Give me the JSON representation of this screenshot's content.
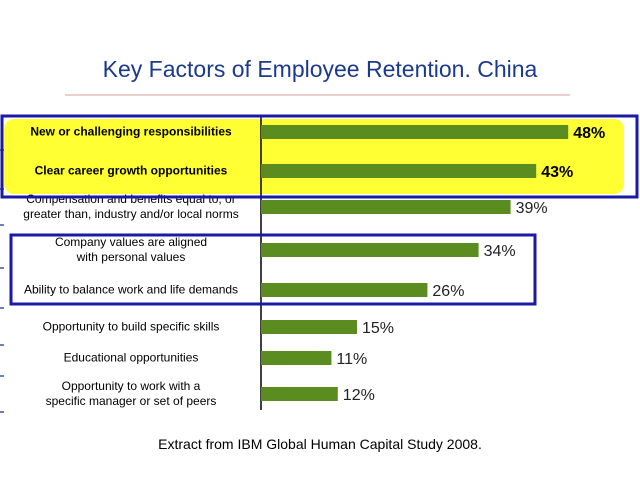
{
  "chart_data": {
    "type": "bar",
    "orientation": "horizontal",
    "title": "Key Factors of Employee Retention. China",
    "categories": [
      "New or challenging responsibilities",
      "Clear career growth opportunities",
      "Compensation and benefits equal to, or\ngreater than, industry and/or local norms",
      "Company values are aligned\nwith personal values",
      "Ability to balance work and life demands",
      "Opportunity to build specific skills",
      "Educational opportunities",
      "Opportunity to work with a\nspecific manager or set of peers"
    ],
    "values": [
      48,
      43,
      39,
      34,
      26,
      15,
      11,
      12
    ],
    "value_labels": [
      "48%",
      "43%",
      "39%",
      "34%",
      "26%",
      "15%",
      "11%",
      "12%"
    ],
    "color": "#5b8c1f",
    "xlim": [
      0,
      50
    ],
    "note": "Extract from IBM Global Human Capital Study 2008."
  }
}
